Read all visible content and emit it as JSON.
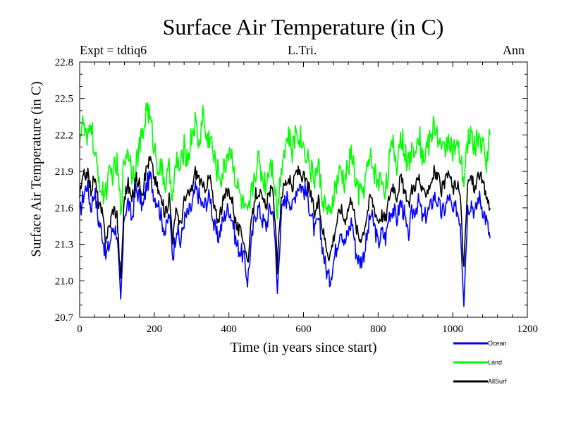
{
  "chart_data": {
    "type": "line",
    "title": "Surface Air Temperature (in C)",
    "subtitle_left": "Expt = tdtiq6",
    "subtitle_center": "L.Tri.",
    "subtitle_right": "Ann",
    "xlabel": "Time (in years since start)",
    "ylabel": "Surface Air Temperature (in C)",
    "xlim": [
      0,
      1200
    ],
    "ylim": [
      20.7,
      22.8
    ],
    "xticks": [
      0,
      200,
      400,
      600,
      800,
      1000,
      1200
    ],
    "xtick_labels": [
      "0",
      "200",
      "400",
      "600",
      "800",
      "1000",
      "1200"
    ],
    "yticks": [
      20.7,
      21.0,
      21.3,
      21.6,
      21.9,
      22.2,
      22.5,
      22.8
    ],
    "ytick_labels": [
      "20.7",
      "21.0",
      "21.3",
      "21.6",
      "21.9",
      "22.2",
      "22.5",
      "22.8"
    ],
    "legend_position": "below-right",
    "sampling_note": "Annual series years 1-1100; values approximated from the plot (every ~10 years)",
    "x": [
      0,
      10,
      20,
      30,
      40,
      50,
      60,
      70,
      80,
      90,
      100,
      110,
      120,
      130,
      140,
      150,
      160,
      170,
      180,
      190,
      200,
      210,
      220,
      230,
      240,
      250,
      260,
      270,
      280,
      290,
      300,
      310,
      320,
      330,
      340,
      350,
      360,
      370,
      380,
      390,
      400,
      410,
      420,
      430,
      440,
      450,
      460,
      470,
      480,
      490,
      500,
      510,
      520,
      530,
      540,
      550,
      560,
      570,
      580,
      590,
      600,
      610,
      620,
      630,
      640,
      650,
      660,
      670,
      680,
      690,
      700,
      710,
      720,
      730,
      740,
      750,
      760,
      770,
      780,
      790,
      800,
      810,
      820,
      830,
      840,
      850,
      860,
      870,
      880,
      890,
      900,
      910,
      920,
      930,
      940,
      950,
      960,
      970,
      980,
      990,
      1000,
      1010,
      1020,
      1030,
      1040,
      1050,
      1060,
      1070,
      1080,
      1090,
      1100
    ],
    "series": [
      {
        "name": "Ocean",
        "color": "#0000ff",
        "values": [
          21.55,
          21.7,
          21.8,
          21.6,
          21.75,
          21.5,
          21.4,
          21.2,
          21.3,
          21.45,
          21.4,
          20.8,
          21.55,
          21.65,
          21.5,
          21.75,
          21.7,
          21.6,
          21.8,
          21.85,
          21.7,
          21.65,
          21.5,
          21.4,
          21.55,
          21.2,
          21.45,
          21.3,
          21.5,
          21.55,
          21.6,
          21.75,
          21.7,
          21.6,
          21.65,
          21.7,
          21.45,
          21.35,
          21.45,
          21.55,
          21.6,
          21.5,
          21.3,
          21.25,
          21.2,
          21.0,
          21.3,
          21.55,
          21.6,
          21.5,
          21.45,
          21.6,
          21.55,
          20.9,
          21.55,
          21.65,
          21.7,
          21.6,
          21.75,
          21.8,
          21.75,
          21.7,
          21.55,
          21.4,
          21.5,
          21.3,
          21.1,
          21.0,
          21.15,
          21.3,
          21.45,
          21.3,
          21.4,
          21.5,
          21.25,
          21.15,
          21.2,
          21.35,
          21.55,
          21.45,
          21.3,
          21.4,
          21.35,
          21.55,
          21.6,
          21.5,
          21.65,
          21.55,
          21.35,
          21.55,
          21.6,
          21.65,
          21.5,
          21.55,
          21.6,
          21.7,
          21.65,
          21.55,
          21.6,
          21.7,
          21.55,
          21.6,
          21.5,
          20.85,
          21.6,
          21.65,
          21.55,
          21.7,
          21.6,
          21.5,
          21.35
        ]
      },
      {
        "name": "Land",
        "color": "#00ff00",
        "values": [
          22.2,
          22.3,
          22.1,
          22.35,
          22.0,
          21.9,
          21.7,
          21.75,
          21.85,
          21.9,
          21.95,
          21.6,
          22.0,
          22.1,
          21.9,
          21.95,
          22.1,
          22.2,
          22.45,
          22.3,
          22.1,
          21.95,
          21.9,
          21.8,
          21.9,
          21.7,
          22.0,
          21.9,
          22.1,
          22.0,
          22.2,
          22.3,
          22.1,
          22.4,
          22.15,
          22.2,
          22.0,
          21.9,
          21.85,
          21.95,
          22.1,
          22.0,
          21.8,
          21.7,
          21.6,
          21.5,
          21.7,
          21.9,
          22.0,
          21.85,
          21.8,
          22.0,
          21.9,
          21.55,
          21.95,
          22.1,
          22.2,
          22.05,
          22.25,
          22.2,
          22.1,
          22.05,
          21.9,
          21.85,
          21.95,
          21.7,
          21.6,
          21.5,
          21.7,
          21.8,
          21.9,
          21.8,
          21.95,
          22.05,
          21.8,
          21.7,
          21.75,
          21.9,
          22.0,
          21.9,
          21.8,
          21.85,
          21.75,
          22.0,
          22.1,
          21.95,
          22.2,
          22.1,
          21.95,
          22.05,
          22.15,
          22.2,
          22.0,
          22.1,
          22.15,
          22.3,
          22.2,
          22.05,
          22.1,
          22.2,
          22.05,
          22.1,
          22.0,
          21.8,
          22.15,
          22.2,
          22.1,
          22.2,
          22.1,
          22.0,
          22.2
        ]
      },
      {
        "name": "AllSurf",
        "color": "#000000",
        "values": [
          21.7,
          21.85,
          21.9,
          21.75,
          21.85,
          21.65,
          21.55,
          21.35,
          21.45,
          21.6,
          21.55,
          21.0,
          21.7,
          21.8,
          21.65,
          21.85,
          21.8,
          21.75,
          21.95,
          22.0,
          21.85,
          21.75,
          21.65,
          21.55,
          21.7,
          21.35,
          21.6,
          21.45,
          21.65,
          21.7,
          21.75,
          21.9,
          21.85,
          21.75,
          21.8,
          21.85,
          21.6,
          21.5,
          21.6,
          21.7,
          21.75,
          21.65,
          21.45,
          21.4,
          21.35,
          21.15,
          21.45,
          21.7,
          21.75,
          21.65,
          21.6,
          21.75,
          21.7,
          21.1,
          21.7,
          21.8,
          21.85,
          21.75,
          21.9,
          21.9,
          21.85,
          21.8,
          21.7,
          21.55,
          21.65,
          21.45,
          21.3,
          21.2,
          21.35,
          21.5,
          21.6,
          21.5,
          21.6,
          21.7,
          21.45,
          21.35,
          21.4,
          21.55,
          21.7,
          21.6,
          21.5,
          21.55,
          21.5,
          21.7,
          21.8,
          21.7,
          21.85,
          21.75,
          21.6,
          21.75,
          21.8,
          21.85,
          21.7,
          21.75,
          21.8,
          21.9,
          21.85,
          21.75,
          21.8,
          21.9,
          21.75,
          21.8,
          21.7,
          21.1,
          21.8,
          21.85,
          21.75,
          21.9,
          21.8,
          21.7,
          21.6
        ]
      }
    ]
  }
}
